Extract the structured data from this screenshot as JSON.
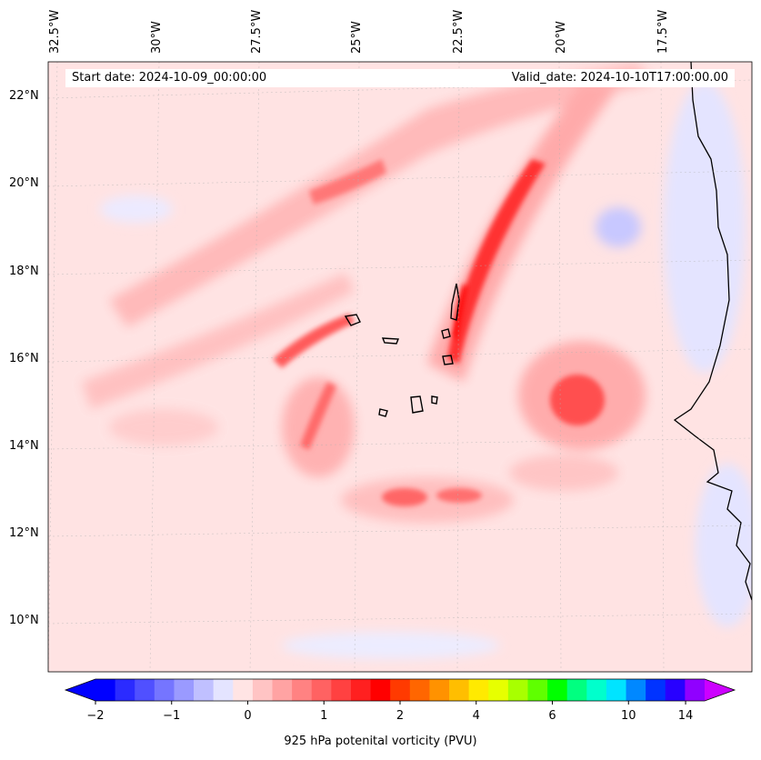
{
  "map": {
    "start_date_text": "Start date: 2024-10-09_00:00:00",
    "valid_date_text": "Valid_date: 2024-10-10T17:00:00.00",
    "longitude_labels": [
      "32.5°W",
      "30°W",
      "27.5°W",
      "25°W",
      "22.5°W",
      "20°W",
      "17.5°W"
    ],
    "latitude_labels": [
      "22°N",
      "20°N",
      "18°N",
      "16°N",
      "14°N",
      "12°N",
      "10°N"
    ],
    "extent": {
      "lon_min": -32.7,
      "lon_max": -15.4,
      "lat_min": 8.9,
      "lat_max": 22.8
    },
    "field": "925 hPa potential vorticity",
    "colors": {
      "background_pv": "#ffe3e3",
      "coastline": "#000000"
    }
  },
  "colorbar": {
    "title": "925 hPa potenital vorticity (PVU)",
    "tick_labels": [
      "−2",
      "−1",
      "0",
      "1",
      "2",
      "4",
      "6",
      "10",
      "14"
    ],
    "colors": [
      "#0000ff",
      "#2b2bff",
      "#5050ff",
      "#7575ff",
      "#9a9aff",
      "#c0c0ff",
      "#e4e4ff",
      "#ffe4e4",
      "#ffc4c4",
      "#ffa3a3",
      "#ff8282",
      "#ff6262",
      "#ff4141",
      "#ff2020",
      "#ff0000",
      "#ff3a00",
      "#ff6600",
      "#ff9200",
      "#ffbe00",
      "#ffea00",
      "#e7ff00",
      "#a8ff00",
      "#5fff00",
      "#00ff00",
      "#00ff80",
      "#00ffcc",
      "#00e4ff",
      "#0088ff",
      "#0033ff",
      "#2800ff",
      "#9000ff"
    ],
    "extend_min_color": "#0000ff",
    "extend_max_color": "#cc00ff"
  }
}
